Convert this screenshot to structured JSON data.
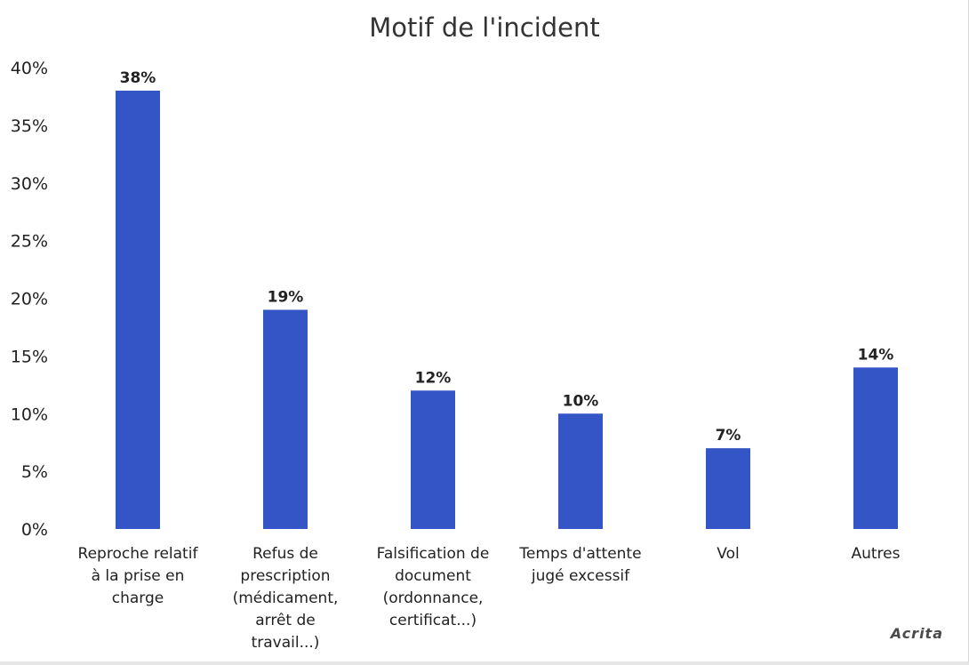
{
  "chart_data": {
    "type": "bar",
    "title": "Motif de l'incident",
    "xlabel": "",
    "ylabel": "",
    "ylim": [
      0,
      40
    ],
    "yticks": [
      "0%",
      "5%",
      "10%",
      "15%",
      "20%",
      "25%",
      "30%",
      "35%",
      "40%"
    ],
    "grid": false,
    "legend": "none",
    "bar_color": "#3355c5",
    "categories": [
      [
        "Reproche relatif",
        "à la prise en",
        "charge"
      ],
      [
        "Refus de",
        "prescription",
        "(médicament,",
        "arrêt de",
        "travail...)"
      ],
      [
        "Falsification de",
        "document",
        "(ordonnance,",
        "certificat...)"
      ],
      [
        "Temps d'attente",
        "jugé excessif"
      ],
      [
        "Vol"
      ],
      [
        "Autres"
      ]
    ],
    "values": [
      38,
      19,
      12,
      10,
      7,
      14
    ],
    "value_labels": [
      "38%",
      "19%",
      "12%",
      "10%",
      "7%",
      "14%"
    ]
  },
  "brand": "Acrita"
}
